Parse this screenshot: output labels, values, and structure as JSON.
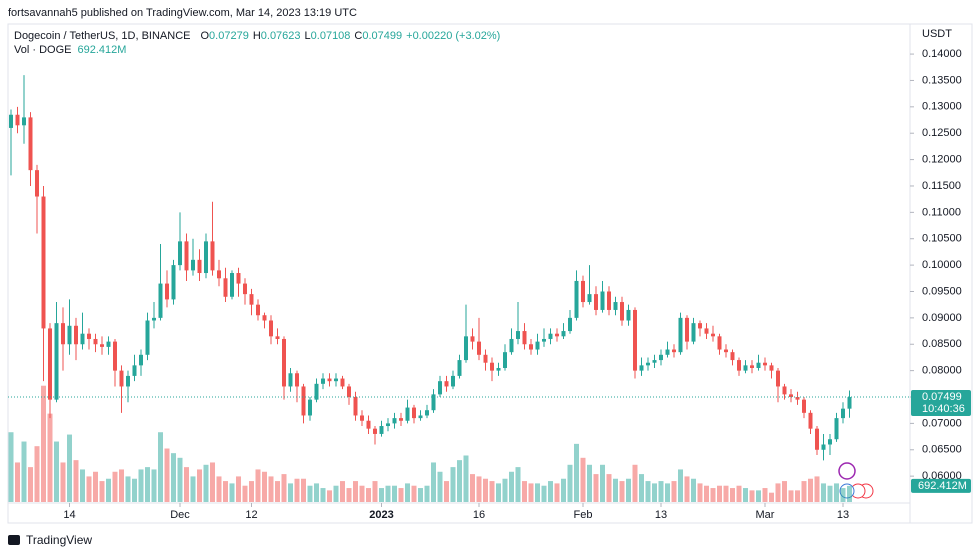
{
  "header": {
    "publisher": "fortsavannah5 published on TradingView.com, Mar 14, 2023 13:19 UTC",
    "footer": "TradingView"
  },
  "chart_data": {
    "type": "candlestick",
    "title": "Dogecoin / TetherUS, 1D, BINANCE",
    "ohlc_legend": [
      {
        "key": "O",
        "value": "0.07279"
      },
      {
        "key": "H",
        "value": "0.07623"
      },
      {
        "key": "L",
        "value": "0.07108"
      },
      {
        "key": "C",
        "value": "0.07499"
      }
    ],
    "change": "+0.00220 (+3.02%)",
    "volume_title": "Vol · DOGE",
    "volume_label": "692.412M",
    "y_unit": "USDT",
    "last_price_label": "0.07499",
    "countdown": "10:40:36",
    "up_color": "#26a69a",
    "down_color": "#ef5350",
    "open": [
      0.126,
      0.1285,
      0.1265,
      0.128,
      0.118,
      0.113,
      0.088,
      0.0745,
      0.089,
      0.085,
      0.0885,
      0.085,
      0.087,
      0.086,
      0.085,
      0.0845,
      0.0855,
      0.08,
      0.077,
      0.079,
      0.081,
      0.083,
      0.0895,
      0.09,
      0.0965,
      0.0935,
      0.1,
      0.1045,
      0.099,
      0.101,
      0.0985,
      0.1045,
      0.099,
      0.0975,
      0.094,
      0.0985,
      0.0965,
      0.0945,
      0.0925,
      0.0905,
      0.0895,
      0.0865,
      0.086,
      0.077,
      0.0795,
      0.077,
      0.0715,
      0.0745,
      0.0775,
      0.0785,
      0.078,
      0.0785,
      0.077,
      0.075,
      0.0715,
      0.0705,
      0.069,
      0.068,
      0.0695,
      0.07,
      0.071,
      0.0705,
      0.073,
      0.071,
      0.0715,
      0.0725,
      0.0755,
      0.078,
      0.077,
      0.079,
      0.082,
      0.0865,
      0.0855,
      0.083,
      0.0815,
      0.08,
      0.0805,
      0.0835,
      0.086,
      0.0875,
      0.085,
      0.084,
      0.0855,
      0.086,
      0.087,
      0.0865,
      0.0875,
      0.09,
      0.097,
      0.093,
      0.0945,
      0.0915,
      0.095,
      0.0915,
      0.093,
      0.0895,
      0.0915,
      0.08,
      0.081,
      0.0815,
      0.082,
      0.083,
      0.084,
      0.0835,
      0.09,
      0.0855,
      0.089,
      0.088,
      0.087,
      0.0865,
      0.084,
      0.0835,
      0.082,
      0.08,
      0.081,
      0.0805,
      0.0815,
      0.081,
      0.08,
      0.077,
      0.0755,
      0.075,
      0.0745,
      0.072,
      0.069,
      0.065,
      0.066,
      0.067,
      0.071,
      0.07279
    ],
    "high": [
      0.1295,
      0.13,
      0.136,
      0.129,
      0.119,
      0.115,
      0.089,
      0.093,
      0.092,
      0.0935,
      0.09,
      0.091,
      0.088,
      0.087,
      0.0865,
      0.0865,
      0.086,
      0.081,
      0.08,
      0.083,
      0.084,
      0.091,
      0.093,
      0.104,
      0.099,
      0.101,
      0.11,
      0.106,
      0.105,
      0.103,
      0.106,
      0.112,
      0.101,
      0.0995,
      0.099,
      0.0995,
      0.0975,
      0.0955,
      0.0935,
      0.091,
      0.0905,
      0.088,
      0.0865,
      0.0805,
      0.08,
      0.0775,
      0.075,
      0.0785,
      0.0795,
      0.0795,
      0.0795,
      0.079,
      0.0775,
      0.076,
      0.0725,
      0.0715,
      0.0695,
      0.0705,
      0.071,
      0.072,
      0.072,
      0.0745,
      0.0735,
      0.0725,
      0.0735,
      0.0765,
      0.079,
      0.079,
      0.08,
      0.083,
      0.0925,
      0.088,
      0.09,
      0.084,
      0.0825,
      0.0815,
      0.085,
      0.088,
      0.093,
      0.089,
      0.086,
      0.087,
      0.088,
      0.088,
      0.088,
      0.089,
      0.0915,
      0.099,
      0.098,
      0.1,
      0.096,
      0.097,
      0.096,
      0.094,
      0.094,
      0.0925,
      0.092,
      0.0825,
      0.0825,
      0.083,
      0.084,
      0.0855,
      0.085,
      0.091,
      0.0905,
      0.09,
      0.0895,
      0.089,
      0.0885,
      0.087,
      0.085,
      0.084,
      0.0825,
      0.082,
      0.082,
      0.083,
      0.0825,
      0.0815,
      0.0805,
      0.0775,
      0.0765,
      0.076,
      0.075,
      0.0725,
      0.0695,
      0.068,
      0.068,
      0.072,
      0.074,
      0.07623
    ],
    "low": [
      0.117,
      0.125,
      0.123,
      0.115,
      0.106,
      0.078,
      0.071,
      0.074,
      0.08,
      0.083,
      0.082,
      0.084,
      0.084,
      0.0835,
      0.083,
      0.083,
      0.077,
      0.072,
      0.074,
      0.078,
      0.079,
      0.082,
      0.088,
      0.0895,
      0.092,
      0.0925,
      0.099,
      0.097,
      0.098,
      0.097,
      0.0975,
      0.098,
      0.096,
      0.093,
      0.0935,
      0.094,
      0.0925,
      0.0905,
      0.0895,
      0.088,
      0.085,
      0.085,
      0.0745,
      0.076,
      0.074,
      0.07,
      0.0705,
      0.074,
      0.0765,
      0.077,
      0.077,
      0.0765,
      0.0735,
      0.0705,
      0.0695,
      0.068,
      0.066,
      0.0675,
      0.0685,
      0.069,
      0.0695,
      0.07,
      0.07,
      0.0705,
      0.071,
      0.072,
      0.075,
      0.076,
      0.0765,
      0.0785,
      0.0815,
      0.084,
      0.082,
      0.08,
      0.078,
      0.079,
      0.08,
      0.083,
      0.085,
      0.084,
      0.083,
      0.083,
      0.0845,
      0.085,
      0.0855,
      0.086,
      0.087,
      0.0895,
      0.092,
      0.0925,
      0.0905,
      0.091,
      0.0905,
      0.0905,
      0.0885,
      0.0885,
      0.0785,
      0.079,
      0.08,
      0.0805,
      0.081,
      0.0825,
      0.0825,
      0.083,
      0.084,
      0.085,
      0.0865,
      0.086,
      0.0855,
      0.083,
      0.0825,
      0.081,
      0.079,
      0.0795,
      0.0795,
      0.08,
      0.08,
      0.0785,
      0.074,
      0.0745,
      0.074,
      0.0735,
      0.071,
      0.068,
      0.064,
      0.063,
      0.064,
      0.0665,
      0.07,
      0.07108
    ],
    "close": [
      0.1285,
      0.1265,
      0.128,
      0.118,
      0.113,
      0.088,
      0.0745,
      0.089,
      0.085,
      0.0885,
      0.085,
      0.087,
      0.086,
      0.085,
      0.0845,
      0.0855,
      0.08,
      0.077,
      0.079,
      0.081,
      0.083,
      0.0895,
      0.09,
      0.0965,
      0.0935,
      0.1,
      0.1045,
      0.099,
      0.101,
      0.0985,
      0.1045,
      0.099,
      0.0975,
      0.094,
      0.0985,
      0.0965,
      0.0945,
      0.0925,
      0.0905,
      0.0895,
      0.0865,
      0.086,
      0.077,
      0.0795,
      0.077,
      0.0715,
      0.0745,
      0.0775,
      0.0785,
      0.078,
      0.0785,
      0.077,
      0.075,
      0.0715,
      0.0705,
      0.069,
      0.068,
      0.0695,
      0.07,
      0.071,
      0.0705,
      0.073,
      0.071,
      0.0715,
      0.0725,
      0.0755,
      0.078,
      0.077,
      0.079,
      0.082,
      0.0865,
      0.0855,
      0.083,
      0.0815,
      0.08,
      0.0805,
      0.0835,
      0.086,
      0.0875,
      0.085,
      0.084,
      0.0855,
      0.086,
      0.087,
      0.0865,
      0.0875,
      0.09,
      0.097,
      0.093,
      0.0945,
      0.0915,
      0.095,
      0.0915,
      0.093,
      0.0895,
      0.0915,
      0.08,
      0.081,
      0.0815,
      0.082,
      0.083,
      0.084,
      0.0835,
      0.09,
      0.0855,
      0.089,
      0.088,
      0.087,
      0.0865,
      0.084,
      0.0835,
      0.082,
      0.08,
      0.081,
      0.0805,
      0.0815,
      0.081,
      0.08,
      0.077,
      0.0755,
      0.075,
      0.0745,
      0.072,
      0.069,
      0.065,
      0.066,
      0.067,
      0.071,
      0.07279,
      0.07499
    ],
    "volume": [
      3000,
      1700,
      2600,
      1500,
      2400,
      5000,
      3800,
      2600,
      1700,
      2900,
      1800,
      1400,
      1100,
      1300,
      900,
      1000,
      1300,
      1400,
      1100,
      1000,
      1400,
      1500,
      1400,
      3000,
      2300,
      2100,
      1900,
      1500,
      1100,
      1400,
      1600,
      1700,
      1100,
      900,
      800,
      1100,
      700,
      900,
      1400,
      1300,
      1100,
      900,
      1200,
      800,
      1000,
      1000,
      700,
      800,
      600,
      500,
      700,
      900,
      600,
      900,
      700,
      600,
      900,
      600,
      700,
      700,
      600,
      800,
      700,
      600,
      700,
      1700,
      1300,
      900,
      1500,
      1800,
      2000,
      1200,
      1100,
      1000,
      900,
      800,
      1000,
      1300,
      1500,
      900,
      800,
      800,
      700,
      900,
      800,
      1000,
      1600,
      2500,
      1900,
      1600,
      1200,
      1600,
      1200,
      1000,
      900,
      1000,
      1600,
      1200,
      900,
      800,
      900,
      800,
      900,
      1400,
      1100,
      1000,
      800,
      700,
      600,
      700,
      700,
      600,
      700,
      600,
      500,
      500,
      600,
      400,
      800,
      900,
      500,
      500,
      900,
      1000,
      1100,
      800,
      700,
      800,
      600,
      692.412
    ],
    "ylim": [
      0.0551,
      0.1457
    ],
    "yticks": [
      {
        "value": 0.06,
        "label": "0.06000"
      },
      {
        "value": 0.065,
        "label": "0.06500"
      },
      {
        "value": 0.07,
        "label": "0.07000"
      },
      {
        "value": 0.075,
        "label": "0.07500"
      },
      {
        "value": 0.08,
        "label": "0.08000"
      },
      {
        "value": 0.085,
        "label": "0.08500"
      },
      {
        "value": 0.09,
        "label": "0.09000"
      },
      {
        "value": 0.095,
        "label": "0.09500"
      },
      {
        "value": 0.1,
        "label": "0.10000"
      },
      {
        "value": 0.105,
        "label": "0.10500"
      },
      {
        "value": 0.11,
        "label": "0.11000"
      },
      {
        "value": 0.115,
        "label": "0.11500"
      },
      {
        "value": 0.12,
        "label": "0.12000"
      },
      {
        "value": 0.125,
        "label": "0.12500"
      },
      {
        "value": 0.13,
        "label": "0.13000"
      },
      {
        "value": 0.135,
        "label": "0.13500"
      },
      {
        "value": 0.14,
        "label": "0.14000"
      }
    ],
    "xticks": [
      {
        "value": 9,
        "label": "14"
      },
      {
        "value": 26,
        "label": "Dec"
      },
      {
        "value": 37,
        "label": "12"
      },
      {
        "value": 57,
        "label": "2023"
      },
      {
        "value": 72,
        "label": "16"
      },
      {
        "value": 88,
        "label": "Feb"
      },
      {
        "value": 100,
        "label": "13"
      },
      {
        "value": 116,
        "label": "Mar"
      },
      {
        "value": 128,
        "label": "13"
      }
    ]
  }
}
